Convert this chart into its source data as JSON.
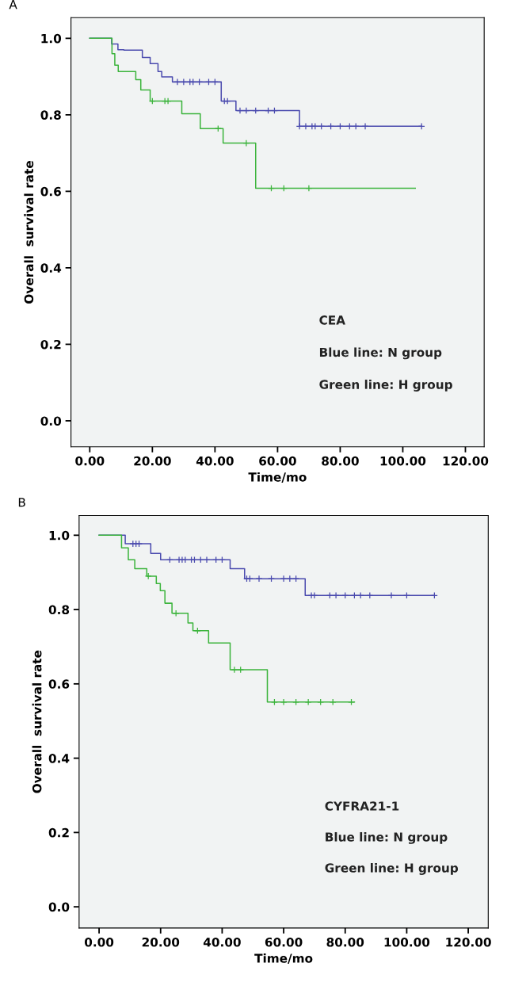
{
  "chart_data": [
    {
      "type": "step",
      "title": "A",
      "xlabel": "Time/mo",
      "ylabel": "Overall  survival rate",
      "xlim": [
        -6,
        126
      ],
      "ylim": [
        -0.068,
        1.054
      ],
      "xticks": [
        {
          "value": 0,
          "label": "0.00"
        },
        {
          "value": 20,
          "label": "20.00"
        },
        {
          "value": 40,
          "label": "40.00"
        },
        {
          "value": 60,
          "label": "60.00"
        },
        {
          "value": 80,
          "label": "80.00"
        },
        {
          "value": 100,
          "label": "100.00"
        },
        {
          "value": 120,
          "label": "120.00"
        }
      ],
      "yticks": [
        {
          "value": 0,
          "label": "0.0"
        },
        {
          "value": 0.2,
          "label": "0.2"
        },
        {
          "value": 0.4,
          "label": "0.4"
        },
        {
          "value": 0.6,
          "label": "0.6"
        },
        {
          "value": 0.8,
          "label": "0.8"
        },
        {
          "value": 1.0,
          "label": "1.0"
        }
      ],
      "grid": false,
      "legend": false,
      "annotations": [
        "CEA",
        "Blue line: N group",
        "Green line: H group"
      ],
      "series": [
        {
          "color": "#4a4aae",
          "x": [
            0,
            7,
            9,
            10.9,
            16.8,
            19.3,
            21.8,
            23,
            26.4,
            42,
            46.7,
            67,
            106
          ],
          "values": [
            1.0,
            0.985,
            0.97,
            0.969,
            0.95,
            0.934,
            0.913,
            0.899,
            0.886,
            0.836,
            0.811,
            0.77,
            0.77
          ]
        },
        {
          "color": "#3cb43c",
          "x": [
            0,
            7.1,
            8,
            9.1,
            14.7,
            16.3,
            19.3,
            29.4,
            35.3,
            42.6,
            53,
            104
          ],
          "values": [
            1.0,
            0.96,
            0.93,
            0.913,
            0.892,
            0.865,
            0.836,
            0.803,
            0.764,
            0.726,
            0.608,
            0.608
          ]
        },
        {
          "type": "scatter",
          "marker": "cross",
          "color": "#4a4aae",
          "x": [
            28,
            30,
            32,
            33,
            35,
            38,
            40,
            43,
            44,
            48,
            50,
            53,
            57,
            59,
            67,
            69,
            71,
            72,
            74,
            77,
            80,
            83,
            85,
            88,
            106
          ],
          "values": [
            0.886,
            0.886,
            0.886,
            0.886,
            0.886,
            0.886,
            0.886,
            0.836,
            0.836,
            0.811,
            0.811,
            0.811,
            0.811,
            0.811,
            0.77,
            0.77,
            0.77,
            0.77,
            0.77,
            0.77,
            0.77,
            0.77,
            0.77,
            0.77,
            0.77
          ]
        },
        {
          "type": "scatter",
          "marker": "cross",
          "color": "#3cb43c",
          "x": [
            20,
            24,
            25,
            41,
            50,
            58,
            62,
            70
          ],
          "values": [
            0.836,
            0.836,
            0.836,
            0.764,
            0.726,
            0.608,
            0.608,
            0.608
          ]
        }
      ]
    },
    {
      "type": "step",
      "title": "B",
      "xlabel": "Time/mo",
      "ylabel": "Overall  survival rate",
      "xlim": [
        -6.5,
        126.5
      ],
      "ylim": [
        -0.057,
        1.053
      ],
      "xticks": [
        {
          "value": 0,
          "label": "0.00"
        },
        {
          "value": 20,
          "label": "20.00"
        },
        {
          "value": 40,
          "label": "40.00"
        },
        {
          "value": 60,
          "label": "60.00"
        },
        {
          "value": 80,
          "label": "80.00"
        },
        {
          "value": 100,
          "label": "100.00"
        },
        {
          "value": 120,
          "label": "120.00"
        }
      ],
      "yticks": [
        {
          "value": 0,
          "label": "0.0"
        },
        {
          "value": 0.2,
          "label": "0.2"
        },
        {
          "value": 0.4,
          "label": "0.4"
        },
        {
          "value": 0.6,
          "label": "0.6"
        },
        {
          "value": 0.8,
          "label": "0.8"
        },
        {
          "value": 1.0,
          "label": "1.0"
        }
      ],
      "grid": false,
      "legend": false,
      "annotations": [
        "CYFRA21-1",
        "Blue line: N group",
        "Green line: H group"
      ],
      "series": [
        {
          "color": "#4a4aae",
          "x": [
            0,
            8.5,
            16.8,
            20,
            42.6,
            47.3,
            67,
            109
          ],
          "values": [
            1.0,
            0.977,
            0.951,
            0.934,
            0.91,
            0.883,
            0.838,
            0.838
          ]
        },
        {
          "color": "#3cb43c",
          "x": [
            0,
            7.3,
            9.5,
            11.6,
            15.5,
            18.6,
            19.9,
            21.4,
            23.7,
            28.9,
            30.5,
            35.6,
            42.6,
            54.7,
            83
          ],
          "values": [
            1.0,
            0.966,
            0.934,
            0.91,
            0.89,
            0.87,
            0.851,
            0.817,
            0.79,
            0.764,
            0.743,
            0.71,
            0.638,
            0.551,
            0.551
          ]
        },
        {
          "type": "scatter",
          "marker": "cross",
          "color": "#4a4aae",
          "x": [
            11,
            12,
            13,
            23,
            26,
            27,
            28,
            30,
            31,
            33,
            35,
            38,
            40,
            48,
            49,
            52,
            56,
            60,
            62,
            64,
            69,
            70,
            75,
            77,
            80,
            83,
            85,
            88,
            95,
            100,
            109
          ],
          "values": [
            0.977,
            0.977,
            0.977,
            0.934,
            0.934,
            0.934,
            0.934,
            0.934,
            0.934,
            0.934,
            0.934,
            0.934,
            0.934,
            0.883,
            0.883,
            0.883,
            0.883,
            0.883,
            0.883,
            0.883,
            0.838,
            0.838,
            0.838,
            0.838,
            0.838,
            0.838,
            0.838,
            0.838,
            0.838,
            0.838,
            0.838
          ]
        },
        {
          "type": "scatter",
          "marker": "cross",
          "color": "#3cb43c",
          "x": [
            16,
            25,
            32,
            44,
            46,
            57,
            60,
            64,
            68,
            72,
            76,
            82
          ],
          "values": [
            0.89,
            0.79,
            0.743,
            0.638,
            0.638,
            0.551,
            0.551,
            0.551,
            0.551,
            0.551,
            0.551,
            0.551
          ]
        }
      ]
    }
  ]
}
